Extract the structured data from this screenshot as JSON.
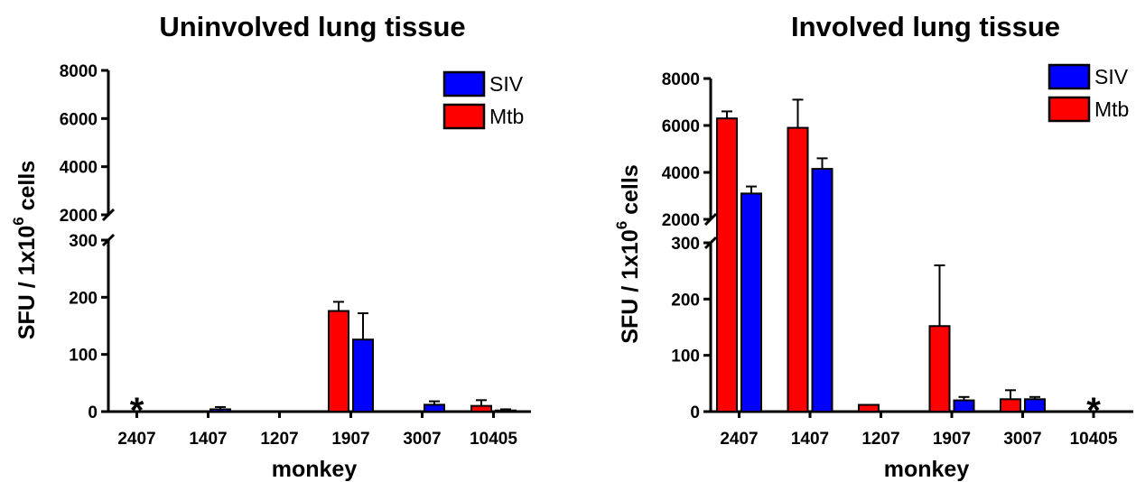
{
  "chart_data": [
    {
      "type": "bar",
      "title": "Uninvolved lung tissue",
      "xlabel": "monkey",
      "ylabel": "SFU / 1x10",
      "ylabel_superscript": "6",
      "ylabel_suffix": " cells",
      "categories": [
        "2407",
        "1407",
        "1207",
        "1907",
        "3007",
        "10405"
      ],
      "y_axis_break": true,
      "ylim_lower": [
        0,
        300
      ],
      "ylim_upper": [
        2000,
        8000
      ],
      "yticks_lower": [
        "0",
        "100",
        "200",
        "300"
      ],
      "yticks_upper": [
        "2000",
        "4000",
        "6000",
        "8000"
      ],
      "legend_placement": "top-right",
      "series": [
        {
          "name": "Mtb",
          "color": "#ff0000",
          "values": [
            0,
            0,
            0,
            176,
            0,
            10
          ],
          "errors": [
            0,
            0,
            0,
            16,
            0,
            10
          ]
        },
        {
          "name": "SIV",
          "color": "#0000ff",
          "values": [
            0,
            4,
            0,
            126,
            12,
            2
          ],
          "errors": [
            0,
            4,
            0,
            46,
            6,
            2
          ]
        }
      ],
      "annotations": [
        {
          "category": "2407",
          "text": "*"
        }
      ]
    },
    {
      "type": "bar",
      "title": "Involved lung tissue",
      "xlabel": "monkey",
      "ylabel": "SFU / 1x10",
      "ylabel_superscript": "6",
      "ylabel_suffix": " cells",
      "categories": [
        "2407",
        "1407",
        "1207",
        "1907",
        "3007",
        "10405"
      ],
      "y_axis_break": true,
      "ylim_lower": [
        0,
        300
      ],
      "ylim_upper": [
        2000,
        8000
      ],
      "yticks_lower": [
        "0",
        "100",
        "200",
        "300"
      ],
      "yticks_upper": [
        "2000",
        "4000",
        "6000",
        "8000"
      ],
      "legend_placement": "top-right",
      "series": [
        {
          "name": "Mtb",
          "color": "#ff0000",
          "values": [
            6300,
            5900,
            12,
            152,
            22,
            0
          ],
          "errors": [
            300,
            1200,
            0,
            108,
            16,
            0
          ]
        },
        {
          "name": "SIV",
          "color": "#0000ff",
          "values": [
            3100,
            4150,
            0,
            20,
            22,
            0
          ],
          "errors": [
            300,
            450,
            0,
            6,
            4,
            0
          ]
        }
      ],
      "annotations": [
        {
          "category": "10405",
          "text": "*"
        }
      ]
    }
  ]
}
